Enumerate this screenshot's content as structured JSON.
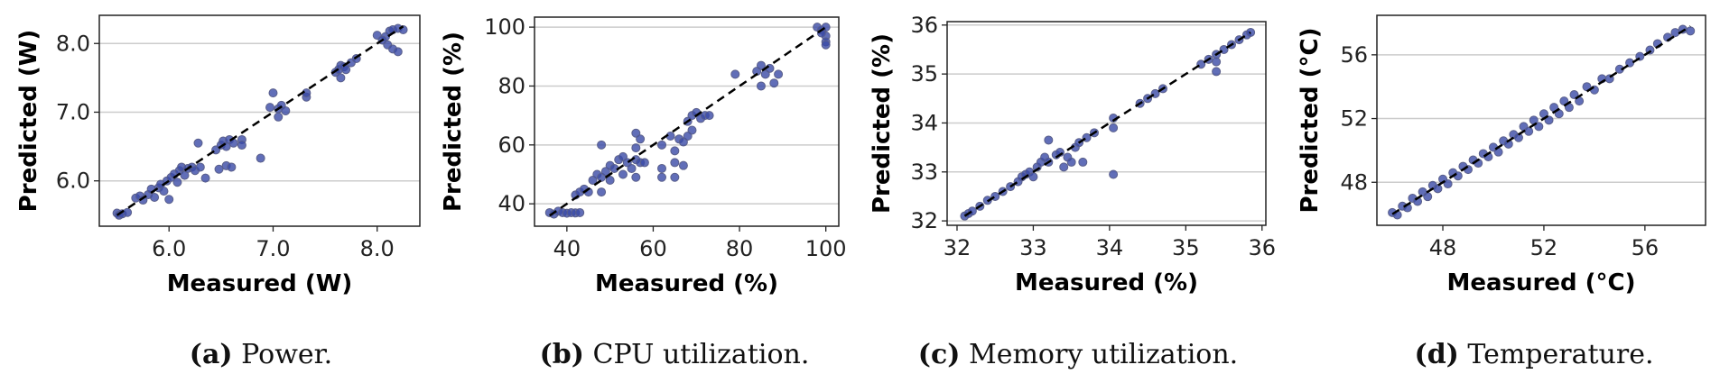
{
  "style": {
    "marker_color": "#3a4aa6",
    "marker_edge": "#5a5f8a",
    "reference_line_color": "#000000",
    "grid_color": "#cccccc"
  },
  "chart_data": [
    {
      "type": "scatter",
      "grid": "horizontal",
      "caption_label": "(a)",
      "caption_text": "Power.",
      "xlabel": "Measured (W)",
      "ylabel": "Predicted (W)",
      "xlim": [
        5.33,
        8.41
      ],
      "ylim": [
        5.34,
        8.41
      ],
      "xticks": [
        6.0,
        7.0,
        8.0
      ],
      "xtick_labels": [
        "6.0",
        "7.0",
        "8.0"
      ],
      "yticks": [
        6.0,
        7.0,
        8.0
      ],
      "ytick_labels": [
        "6.0",
        "7.0",
        "8.0"
      ],
      "reference_line": {
        "kind": "y=x",
        "dashed": true,
        "from": 5.5,
        "to": 8.25
      },
      "points": [
        [
          5.5,
          5.53
        ],
        [
          5.52,
          5.5
        ],
        [
          5.55,
          5.52
        ],
        [
          5.6,
          5.54
        ],
        [
          5.68,
          5.75
        ],
        [
          5.72,
          5.78
        ],
        [
          5.75,
          5.72
        ],
        [
          5.8,
          5.8
        ],
        [
          5.83,
          5.88
        ],
        [
          5.86,
          5.76
        ],
        [
          5.9,
          5.9
        ],
        [
          5.92,
          5.95
        ],
        [
          5.95,
          5.85
        ],
        [
          5.98,
          6.0
        ],
        [
          6.0,
          5.73
        ],
        [
          6.02,
          6.05
        ],
        [
          6.05,
          6.1
        ],
        [
          6.08,
          5.98
        ],
        [
          6.1,
          6.15
        ],
        [
          6.12,
          6.2
        ],
        [
          6.15,
          6.08
        ],
        [
          6.18,
          6.18
        ],
        [
          6.22,
          6.2
        ],
        [
          6.25,
          6.15
        ],
        [
          6.3,
          6.2
        ],
        [
          6.28,
          6.55
        ],
        [
          6.35,
          6.04
        ],
        [
          6.45,
          6.45
        ],
        [
          6.5,
          6.52
        ],
        [
          6.52,
          6.58
        ],
        [
          6.55,
          6.5
        ],
        [
          6.58,
          6.6
        ],
        [
          6.62,
          6.55
        ],
        [
          6.7,
          6.6
        ],
        [
          6.7,
          6.52
        ],
        [
          6.48,
          6.17
        ],
        [
          6.55,
          6.22
        ],
        [
          6.6,
          6.2
        ],
        [
          6.88,
          6.33
        ],
        [
          7.0,
          7.28
        ],
        [
          6.97,
          7.07
        ],
        [
          7.05,
          7.05
        ],
        [
          7.08,
          7.1
        ],
        [
          7.12,
          7.02
        ],
        [
          7.05,
          6.93
        ],
        [
          7.32,
          7.22
        ],
        [
          7.32,
          7.28
        ],
        [
          7.6,
          7.58
        ],
        [
          7.63,
          7.62
        ],
        [
          7.65,
          7.68
        ],
        [
          7.68,
          7.66
        ],
        [
          7.7,
          7.62
        ],
        [
          7.75,
          7.72
        ],
        [
          7.65,
          7.5
        ],
        [
          7.8,
          7.78
        ],
        [
          8.0,
          8.12
        ],
        [
          8.08,
          8.1
        ],
        [
          8.12,
          8.18
        ],
        [
          8.15,
          8.2
        ],
        [
          8.2,
          8.22
        ],
        [
          8.25,
          8.2
        ],
        [
          8.1,
          7.98
        ],
        [
          8.15,
          7.92
        ],
        [
          8.2,
          7.88
        ],
        [
          8.05,
          8.05
        ]
      ]
    },
    {
      "type": "scatter",
      "grid": "horizontal",
      "caption_label": "(b)",
      "caption_text": "CPU utilization.",
      "xlabel": "Measured (%)",
      "ylabel": "Predicted (%)",
      "xlim": [
        32.5,
        103
      ],
      "ylim": [
        32.4,
        103.4
      ],
      "xticks": [
        40,
        60,
        80,
        100
      ],
      "xtick_labels": [
        "40",
        "60",
        "80",
        "100"
      ],
      "yticks": [
        40,
        60,
        80,
        100
      ],
      "ytick_labels": [
        "40",
        "60",
        "80",
        "100"
      ],
      "reference_line": {
        "kind": "y=x",
        "dashed": true,
        "from": 36,
        "to": 100
      },
      "points": [
        [
          36,
          37
        ],
        [
          37,
          36.5
        ],
        [
          38,
          37.5
        ],
        [
          39,
          37
        ],
        [
          40,
          36.8
        ],
        [
          41,
          37
        ],
        [
          42,
          36.9
        ],
        [
          43,
          37
        ],
        [
          42,
          43
        ],
        [
          43,
          44
        ],
        [
          44,
          45
        ],
        [
          45,
          44
        ],
        [
          46,
          48
        ],
        [
          47,
          50
        ],
        [
          48,
          49
        ],
        [
          48,
          44
        ],
        [
          49,
          51
        ],
        [
          50,
          48
        ],
        [
          50,
          53
        ],
        [
          51,
          52
        ],
        [
          52,
          55
        ],
        [
          53,
          50
        ],
        [
          53,
          56
        ],
        [
          54,
          54
        ],
        [
          55,
          52
        ],
        [
          56,
          55
        ],
        [
          57,
          54
        ],
        [
          58,
          54
        ],
        [
          48,
          60
        ],
        [
          56,
          64
        ],
        [
          57,
          62
        ],
        [
          56,
          59
        ],
        [
          56,
          49
        ],
        [
          62,
          60
        ],
        [
          62,
          52
        ],
        [
          62,
          49
        ],
        [
          64,
          63
        ],
        [
          65,
          58
        ],
        [
          65,
          54
        ],
        [
          65,
          49
        ],
        [
          66,
          62
        ],
        [
          67,
          53
        ],
        [
          67,
          61
        ],
        [
          68,
          68
        ],
        [
          69,
          70
        ],
        [
          70,
          71
        ],
        [
          71,
          69
        ],
        [
          72,
          70
        ],
        [
          73,
          70
        ],
        [
          69,
          65
        ],
        [
          68,
          63
        ],
        [
          79,
          84
        ],
        [
          84,
          85
        ],
        [
          85,
          87
        ],
        [
          86,
          84
        ],
        [
          87,
          86
        ],
        [
          85,
          80
        ],
        [
          88,
          81
        ],
        [
          89,
          84
        ],
        [
          98,
          100
        ],
        [
          99,
          99
        ],
        [
          100,
          100
        ],
        [
          100,
          97
        ],
        [
          100,
          95
        ],
        [
          100,
          94
        ],
        [
          99,
          98
        ]
      ]
    },
    {
      "type": "scatter",
      "grid": "horizontal",
      "caption_label": "(c)",
      "caption_text": "Memory utilization.",
      "xlabel": "Measured (%)",
      "ylabel": "Predicted (%)",
      "xlim": [
        31.87,
        36.05
      ],
      "ylim": [
        31.91,
        36.07
      ],
      "xticks": [
        32,
        33,
        34,
        35,
        36
      ],
      "xtick_labels": [
        "32",
        "33",
        "34",
        "35",
        "36"
      ],
      "yticks": [
        32,
        33,
        34,
        35,
        36
      ],
      "ytick_labels": [
        "32",
        "33",
        "34",
        "35",
        "36"
      ],
      "reference_line": {
        "kind": "y=x",
        "dashed": true,
        "from": 32.1,
        "to": 35.85
      },
      "points": [
        [
          32.1,
          32.1
        ],
        [
          32.15,
          32.15
        ],
        [
          32.2,
          32.2
        ],
        [
          32.3,
          32.3
        ],
        [
          32.4,
          32.42
        ],
        [
          32.5,
          32.5
        ],
        [
          32.6,
          32.6
        ],
        [
          32.7,
          32.7
        ],
        [
          32.8,
          32.8
        ],
        [
          32.85,
          32.9
        ],
        [
          32.9,
          32.95
        ],
        [
          32.95,
          33.0
        ],
        [
          33.0,
          32.9
        ],
        [
          33.05,
          33.1
        ],
        [
          33.1,
          33.2
        ],
        [
          33.15,
          33.3
        ],
        [
          33.2,
          33.65
        ],
        [
          33.2,
          33.2
        ],
        [
          33.3,
          33.35
        ],
        [
          33.35,
          33.4
        ],
        [
          33.4,
          33.1
        ],
        [
          33.45,
          33.3
        ],
        [
          33.5,
          33.2
        ],
        [
          33.55,
          33.5
        ],
        [
          33.6,
          33.6
        ],
        [
          33.65,
          33.2
        ],
        [
          33.7,
          33.7
        ],
        [
          33.8,
          33.8
        ],
        [
          34.05,
          34.1
        ],
        [
          34.05,
          33.9
        ],
        [
          34.05,
          32.95
        ],
        [
          34.4,
          34.4
        ],
        [
          34.5,
          34.5
        ],
        [
          34.6,
          34.6
        ],
        [
          34.7,
          34.7
        ],
        [
          35.2,
          35.2
        ],
        [
          35.3,
          35.3
        ],
        [
          35.4,
          35.4
        ],
        [
          35.4,
          35.25
        ],
        [
          35.4,
          35.05
        ],
        [
          35.5,
          35.5
        ],
        [
          35.6,
          35.6
        ],
        [
          35.7,
          35.7
        ],
        [
          35.8,
          35.8
        ],
        [
          35.85,
          35.85
        ]
      ]
    },
    {
      "type": "scatter",
      "grid": "horizontal",
      "caption_label": "(d)",
      "caption_text": "Temperature.",
      "xlabel": "Measured (°C)",
      "ylabel": "Predicted (°C)",
      "xlim": [
        45.39,
        58.4
      ],
      "ylim": [
        45.3,
        58.48
      ],
      "xticks": [
        48,
        52,
        56
      ],
      "xtick_labels": [
        "48",
        "52",
        "56"
      ],
      "yticks": [
        48,
        52,
        56
      ],
      "ytick_labels": [
        "48",
        "52",
        "56"
      ],
      "reference_line": {
        "kind": "y=x",
        "dashed": true,
        "from": 46,
        "to": 57.8
      },
      "points": [
        [
          46,
          46.1
        ],
        [
          46.2,
          45.95
        ],
        [
          46.4,
          46.5
        ],
        [
          46.6,
          46.4
        ],
        [
          46.8,
          47.0
        ],
        [
          47.0,
          46.8
        ],
        [
          47.2,
          47.4
        ],
        [
          47.4,
          47.1
        ],
        [
          47.6,
          47.8
        ],
        [
          47.8,
          47.6
        ],
        [
          48.0,
          48.2
        ],
        [
          48.2,
          47.9
        ],
        [
          48.4,
          48.6
        ],
        [
          48.6,
          48.4
        ],
        [
          48.8,
          49.0
        ],
        [
          49.0,
          48.8
        ],
        [
          49.2,
          49.4
        ],
        [
          49.4,
          49.2
        ],
        [
          49.6,
          49.8
        ],
        [
          49.8,
          49.6
        ],
        [
          50.0,
          50.2
        ],
        [
          50.2,
          49.9
        ],
        [
          50.4,
          50.6
        ],
        [
          50.6,
          50.4
        ],
        [
          50.8,
          51.0
        ],
        [
          51.0,
          50.8
        ],
        [
          51.2,
          51.5
        ],
        [
          51.4,
          51.2
        ],
        [
          51.6,
          51.9
        ],
        [
          51.8,
          51.5
        ],
        [
          52.0,
          52.3
        ],
        [
          52.2,
          51.9
        ],
        [
          52.4,
          52.7
        ],
        [
          52.6,
          52.3
        ],
        [
          52.8,
          53.1
        ],
        [
          53.0,
          52.7
        ],
        [
          53.2,
          53.5
        ],
        [
          53.4,
          53.1
        ],
        [
          53.7,
          54.0
        ],
        [
          54.0,
          53.8
        ],
        [
          54.3,
          54.5
        ],
        [
          54.6,
          54.5
        ],
        [
          55.0,
          55.1
        ],
        [
          55.4,
          55.5
        ],
        [
          55.8,
          55.9
        ],
        [
          56.2,
          56.3
        ],
        [
          56.5,
          56.7
        ],
        [
          56.9,
          57.1
        ],
        [
          57.2,
          57.4
        ],
        [
          57.5,
          57.6
        ],
        [
          57.8,
          57.5
        ]
      ]
    }
  ]
}
